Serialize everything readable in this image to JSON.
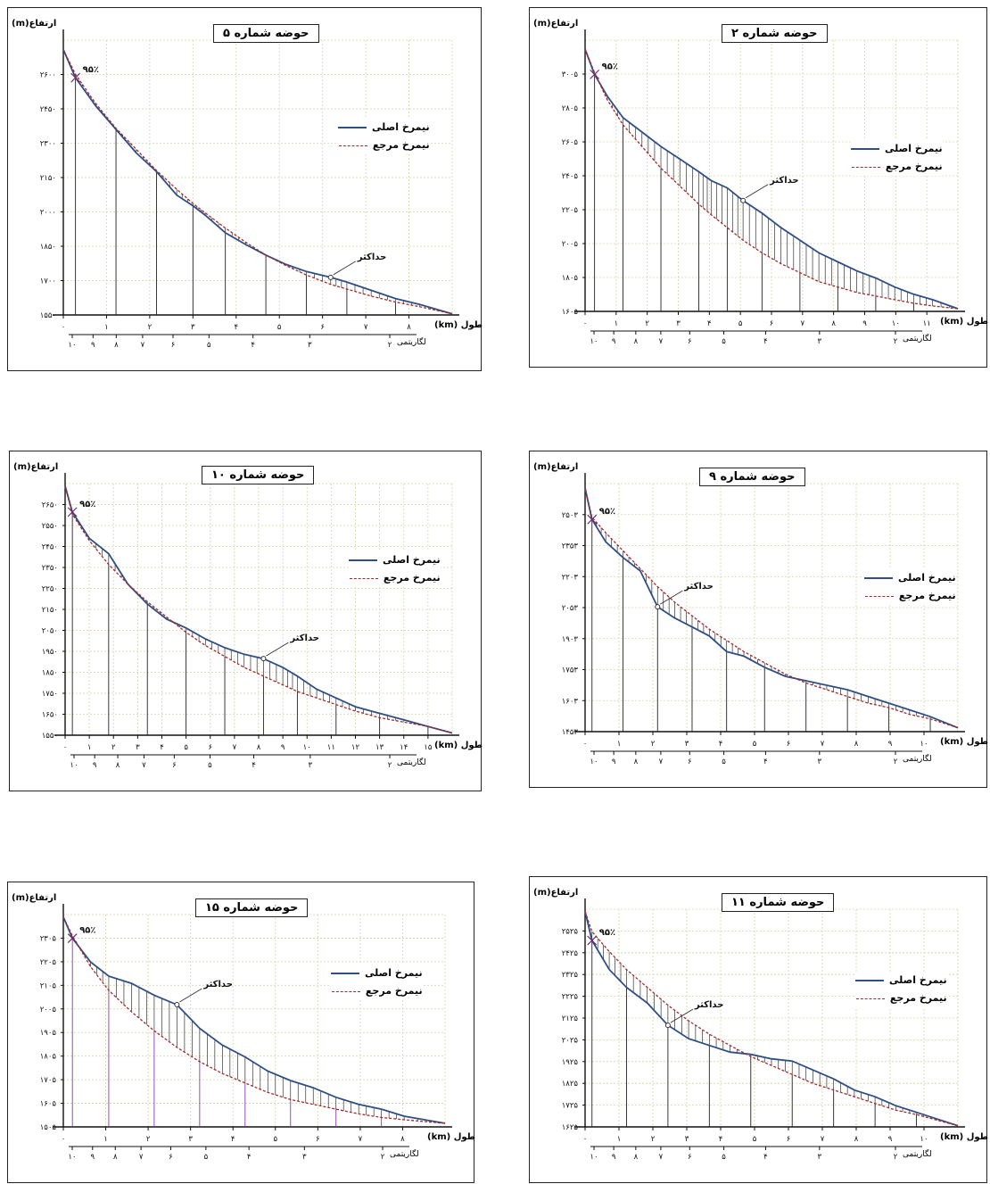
{
  "chart_data": [
    {
      "type": "line",
      "title": "حوضه شماره ۵",
      "ylabel": "ارتفاع(m)",
      "xlabel": "طول",
      "x_unit": "(km)",
      "log_label": "لگاریتمی",
      "annotation_max": "حداکثر",
      "annotation_pct": "۹۵٪",
      "y_ticks": [
        "۱۵۵۰",
        "۱۷۰۰",
        "۱۸۵۰",
        "۲۰۰۰",
        "۲۱۵۰",
        "۲۳۰۰",
        "۲۴۵۰",
        "۲۶۰۰"
      ],
      "x_ticks": [
        "۰",
        "۱",
        "۲",
        "۳",
        "۴",
        "۵",
        "۶",
        "۷",
        "۸"
      ],
      "log_ticks": [
        "۱۰",
        "۹",
        "۸",
        "۷",
        "۶",
        "۵",
        "۴",
        "۳",
        "۲"
      ],
      "ylim": [
        1550,
        2720
      ],
      "xlim": [
        0,
        9.6
      ],
      "series": [
        {
          "name": "نیمرخ اصلی",
          "color": "#2f4f85",
          "x": [
            0,
            0.3,
            0.8,
            1.3,
            1.8,
            2.3,
            2.8,
            3.2,
            3.5,
            4.0,
            4.5,
            5.0,
            5.5,
            6.0,
            6.6,
            7.0,
            7.6,
            8.2,
            8.8,
            9.6
          ],
          "y": [
            2680,
            2560,
            2440,
            2340,
            2240,
            2160,
            2060,
            2015,
            1975,
            1900,
            1850,
            1805,
            1765,
            1735,
            1710,
            1690,
            1655,
            1620,
            1595,
            1555
          ]
        },
        {
          "name": "نیمرخ مرجع",
          "color": "#a52a2a",
          "x": [
            0,
            0.3,
            0.8,
            1.3,
            1.8,
            2.3,
            2.8,
            3.2,
            3.5,
            4.0,
            4.5,
            5.0,
            5.5,
            6.0,
            6.6,
            7.0,
            7.6,
            8.2,
            8.8,
            9.6
          ],
          "y": [
            2680,
            2575,
            2450,
            2345,
            2255,
            2165,
            2085,
            2025,
            1985,
            1920,
            1860,
            1805,
            1760,
            1720,
            1680,
            1660,
            1630,
            1605,
            1585,
            1555
          ]
        }
      ],
      "legend": "right"
    },
    {
      "type": "line",
      "title": "حوضه شماره ۲",
      "ylabel": "ارتفاع(m)",
      "xlabel": "طول",
      "x_unit": "(km)",
      "log_label": "لگاریتمی",
      "annotation_max": "حداکثر",
      "annotation_pct": "۹۵٪",
      "y_ticks": [
        "۱۶۰۵",
        "۱۸۰۵",
        "۲۰۰۵",
        "۲۲۰۵",
        "۲۴۰۵",
        "۲۶۰۵",
        "۲۸۰۵",
        "۳۰۰۵"
      ],
      "x_ticks": [
        "۰",
        "۱",
        "۲",
        "۳",
        "۴",
        "۵",
        "۶",
        "۷",
        "۸",
        "۹",
        "۱۰",
        "۱۱"
      ],
      "log_ticks": [
        "۱۰",
        "۹",
        "۸",
        "۷",
        "۶",
        "۵",
        "۴",
        "۳",
        "۲"
      ],
      "ylim": [
        1605,
        3110
      ],
      "xlim": [
        0,
        11.8
      ],
      "series": [
        {
          "name": "نیمرخ اصلی",
          "color": "#2f4f85",
          "x": [
            0,
            0.3,
            0.7,
            1.2,
            1.8,
            2.4,
            3.0,
            3.6,
            4.0,
            4.5,
            5.0,
            5.6,
            6.2,
            6.8,
            7.4,
            8.0,
            8.6,
            9.2,
            9.8,
            10.4,
            11.0,
            11.8
          ],
          "y": [
            3060,
            2920,
            2800,
            2680,
            2600,
            2520,
            2450,
            2380,
            2330,
            2290,
            2220,
            2150,
            2070,
            2000,
            1930,
            1880,
            1830,
            1790,
            1740,
            1700,
            1670,
            1620
          ]
        },
        {
          "name": "نیمرخ مرجع",
          "color": "#a52a2a",
          "x": [
            0,
            0.3,
            0.7,
            1.2,
            1.8,
            2.4,
            3.0,
            3.6,
            4.0,
            4.5,
            5.0,
            5.6,
            6.2,
            6.8,
            7.4,
            8.0,
            8.6,
            9.2,
            9.8,
            10.4,
            11.0,
            11.8
          ],
          "y": [
            3060,
            2930,
            2780,
            2640,
            2520,
            2400,
            2300,
            2200,
            2140,
            2070,
            2000,
            1930,
            1870,
            1820,
            1770,
            1740,
            1710,
            1690,
            1670,
            1650,
            1635,
            1620
          ]
        }
      ],
      "legend": "right"
    },
    {
      "type": "line",
      "title": "حوضه شماره ۱۰",
      "ylabel": "ارتفاع(m)",
      "xlabel": "طول",
      "x_unit": "(km)",
      "log_label": "لگاریتمی",
      "annotation_max": "حداکثر",
      "annotation_pct": "۹۵٪",
      "y_ticks": [
        "۱۵۵۰",
        "۱۶۵۰",
        "۱۷۵۰",
        "۱۸۵۰",
        "۱۹۵۰",
        "۲۰۵۰",
        "۲۱۵۰",
        "۲۲۵۰",
        "۲۳۵۰",
        "۲۴۵۰",
        "۲۵۵۰",
        "۲۶۵۰"
      ],
      "x_ticks": [
        "۰",
        "۱",
        "۲",
        "۳",
        "۴",
        "۵",
        "۶",
        "۷",
        "۸",
        "۹",
        "۱۰",
        "۱۱",
        "۱۲",
        "۱۳",
        "۱۴",
        "۱۵"
      ],
      "log_ticks": [
        "۱۰",
        "۹",
        "۸",
        "۷",
        "۶",
        "۵",
        "۴",
        "۳",
        "۲"
      ],
      "ylim": [
        1550,
        2700
      ],
      "xlim": [
        0,
        16.0
      ],
      "series": [
        {
          "name": "نیمرخ اصلی",
          "color": "#2f4f85",
          "x": [
            0,
            0.3,
            1.0,
            1.8,
            2.6,
            3.4,
            4.2,
            5.0,
            5.8,
            6.6,
            7.4,
            8.2,
            9.0,
            9.6,
            10.4,
            11.2,
            12.0,
            13.0,
            14.0,
            15.0,
            16.0
          ],
          "y": [
            2690,
            2570,
            2450,
            2380,
            2240,
            2150,
            2080,
            2040,
            1990,
            1950,
            1920,
            1900,
            1860,
            1820,
            1760,
            1720,
            1680,
            1650,
            1620,
            1590,
            1560
          ]
        },
        {
          "name": "نیمرخ مرجع",
          "color": "#a52a2a",
          "x": [
            0,
            0.3,
            1.0,
            1.8,
            2.6,
            3.4,
            4.2,
            5.0,
            5.8,
            6.6,
            7.4,
            8.2,
            9.0,
            9.6,
            10.4,
            11.2,
            12.0,
            13.0,
            14.0,
            15.0,
            16.0
          ],
          "y": [
            2690,
            2560,
            2440,
            2330,
            2240,
            2160,
            2090,
            2020,
            1960,
            1910,
            1860,
            1820,
            1780,
            1750,
            1720,
            1690,
            1660,
            1630,
            1610,
            1590,
            1560
          ]
        }
      ],
      "legend": "right"
    },
    {
      "type": "line",
      "title": "حوضه شماره ۹",
      "ylabel": "ارتفاع(m)",
      "xlabel": "طول",
      "x_unit": "(km)",
      "log_label": "لگاریتمی",
      "annotation_max": "حداکثر",
      "annotation_pct": "۹۵٪",
      "y_ticks": [
        "۱۴۵۳",
        "۱۶۰۳",
        "۱۷۵۳",
        "۱۹۰۳",
        "۲۰۵۳",
        "۲۲۰۳",
        "۲۳۵۳",
        "۲۵۰۳"
      ],
      "x_ticks": [
        "۰",
        "۱",
        "۲",
        "۳",
        "۴",
        "۵",
        "۶",
        "۷",
        "۸",
        "۹",
        "۱۰"
      ],
      "log_ticks": [
        "۱۰",
        "۹",
        "۸",
        "۷",
        "۶",
        "۵",
        "۴",
        "۳",
        "۲"
      ],
      "ylim": [
        1453,
        2560
      ],
      "xlim": [
        0,
        10.8
      ],
      "series": [
        {
          "name": "نیمرخ اصلی",
          "color": "#2f4f85",
          "x": [
            0,
            0.2,
            0.6,
            1.1,
            1.6,
            2.1,
            2.6,
            3.1,
            3.6,
            4.1,
            4.6,
            5.2,
            5.8,
            6.4,
            7.0,
            7.6,
            8.2,
            8.8,
            9.4,
            10.0,
            10.8
          ],
          "y": [
            2540,
            2400,
            2300,
            2230,
            2170,
            2010,
            1960,
            1920,
            1880,
            1810,
            1790,
            1740,
            1700,
            1680,
            1660,
            1640,
            1610,
            1580,
            1550,
            1520,
            1470
          ]
        },
        {
          "name": "نیمرخ مرجع",
          "color": "#a52a2a",
          "x": [
            0,
            0.2,
            0.6,
            1.1,
            1.6,
            2.1,
            2.6,
            3.1,
            3.6,
            4.1,
            4.6,
            5.2,
            5.8,
            6.4,
            7.0,
            7.6,
            8.2,
            8.8,
            9.4,
            10.0,
            10.8
          ],
          "y": [
            2540,
            2410,
            2340,
            2260,
            2180,
            2100,
            2030,
            1970,
            1910,
            1860,
            1810,
            1760,
            1710,
            1670,
            1640,
            1610,
            1580,
            1560,
            1530,
            1510,
            1470
          ]
        }
      ],
      "legend": "right"
    },
    {
      "type": "line",
      "title": "حوضه شماره ۱۵",
      "ylabel": "ارتفاع(m)",
      "xlabel": "طول",
      "x_unit": "(km)",
      "log_label": "لگاریتمی",
      "annotation_max": "حداکثر",
      "annotation_pct": "۹۵٪",
      "y_ticks": [
        "۱۵۰۵",
        "۱۶۰۵",
        "۱۷۰۵",
        "۱۸۰۵",
        "۱۹۰۵",
        "۲۰۰۵",
        "۲۱۰۵",
        "۲۲۰۵",
        "۲۳۰۵"
      ],
      "x_ticks": [
        "۰",
        "۱",
        "۲",
        "۳",
        "۴",
        "۵",
        "۶",
        "۷",
        "۸"
      ],
      "log_ticks": [
        "۱۰",
        "۹",
        "۸",
        "۷",
        "۶",
        "۵",
        "۴",
        "۳",
        "۲"
      ],
      "ylim": [
        1505,
        2400
      ],
      "xlim": [
        0,
        8.4
      ],
      "series": [
        {
          "name": "نیمرخ اصلی",
          "color": "#2f4f85",
          "x": [
            0,
            0.2,
            0.6,
            1.0,
            1.5,
            2.0,
            2.5,
            3.0,
            3.5,
            4.0,
            4.5,
            5.0,
            5.5,
            6.0,
            6.5,
            7.0,
            7.5,
            8.4
          ],
          "y": [
            2390,
            2300,
            2200,
            2140,
            2110,
            2060,
            2020,
            1920,
            1850,
            1800,
            1740,
            1700,
            1670,
            1630,
            1600,
            1580,
            1550,
            1520
          ]
        },
        {
          "name": "نیمرخ مرجع",
          "color": "#a52a2a",
          "x": [
            0,
            0.2,
            0.6,
            1.0,
            1.5,
            2.0,
            2.5,
            3.0,
            3.5,
            4.0,
            4.5,
            5.0,
            5.5,
            6.0,
            6.5,
            7.0,
            7.5,
            8.4
          ],
          "y": [
            2390,
            2310,
            2180,
            2080,
            1990,
            1910,
            1840,
            1780,
            1730,
            1690,
            1650,
            1620,
            1600,
            1580,
            1560,
            1545,
            1535,
            1520
          ]
        }
      ],
      "legend": "right"
    },
    {
      "type": "line",
      "title": "حوضه شماره ۱۱",
      "ylabel": "ارتفاع(m)",
      "xlabel": "طول",
      "x_unit": "(km)",
      "log_label": "لگاریتمی",
      "annotation_max": "حداکثر",
      "annotation_pct": "۹۵٪",
      "y_ticks": [
        "۱۶۲۵",
        "۱۷۲۵",
        "۱۸۲۵",
        "۱۹۲۵",
        "۲۰۲۵",
        "۲۱۲۵",
        "۲۲۲۵",
        "۲۳۲۵",
        "۲۴۲۵",
        "۲۵۲۵"
      ],
      "x_ticks": [
        "۰",
        "۱",
        "۲",
        "۳",
        "۴",
        "۵",
        "۶",
        "۷",
        "۸",
        "۹",
        "۱۰"
      ],
      "log_ticks": [
        "۱۰",
        "۹",
        "۸",
        "۷",
        "۶",
        "۵",
        "۴",
        "۳",
        "۲"
      ],
      "ylim": [
        1625,
        2600
      ],
      "xlim": [
        0,
        10.8
      ],
      "series": [
        {
          "name": "نیمرخ اصلی",
          "color": "#2f4f85",
          "x": [
            0,
            0.2,
            0.7,
            1.2,
            1.8,
            2.4,
            3.0,
            3.6,
            4.2,
            4.8,
            5.4,
            6.0,
            6.6,
            7.2,
            7.8,
            8.4,
            9.0,
            9.6,
            10.2,
            10.8
          ],
          "y": [
            2590,
            2460,
            2330,
            2250,
            2180,
            2080,
            2020,
            1990,
            1960,
            1950,
            1930,
            1920,
            1880,
            1840,
            1790,
            1760,
            1720,
            1690,
            1660,
            1630
          ]
        },
        {
          "name": "نیمرخ مرجع",
          "color": "#a52a2a",
          "x": [
            0,
            0.2,
            0.7,
            1.2,
            1.8,
            2.4,
            3.0,
            3.6,
            4.2,
            4.8,
            5.4,
            6.0,
            6.6,
            7.2,
            7.8,
            8.4,
            9.0,
            9.6,
            10.2,
            10.8
          ],
          "y": [
            2590,
            2500,
            2410,
            2330,
            2250,
            2170,
            2100,
            2040,
            1990,
            1940,
            1900,
            1860,
            1820,
            1790,
            1760,
            1730,
            1700,
            1680,
            1655,
            1630
          ]
        }
      ],
      "legend": "right"
    }
  ]
}
